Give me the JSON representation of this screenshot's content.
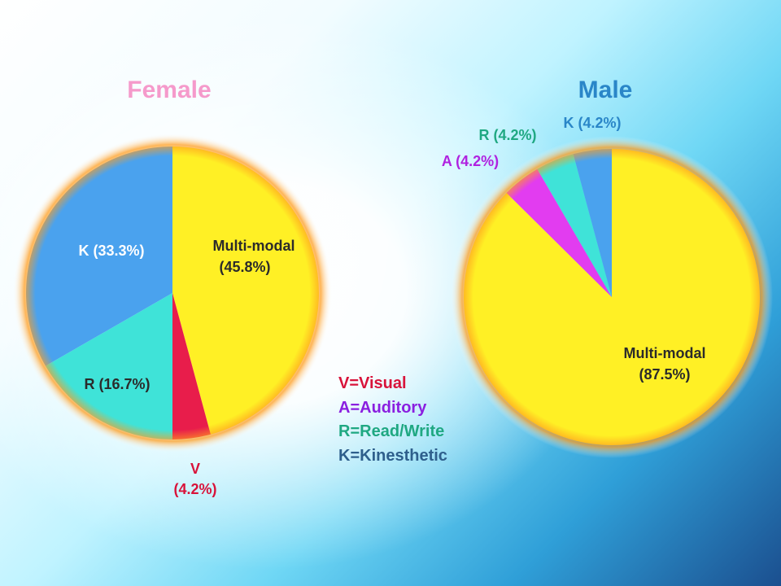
{
  "chart_data": [
    {
      "type": "pie",
      "title": "Female",
      "slices": [
        {
          "label": "Multi-modal",
          "value": 45.8,
          "text": "(45.8%)",
          "color": "#fff025"
        },
        {
          "label": "V",
          "value": 4.2,
          "text": "(4.2%)",
          "color": "#e81d4b"
        },
        {
          "label": "R",
          "value": 16.7,
          "text": "R (16.7%)",
          "color": "#3fe3d8"
        },
        {
          "label": "K",
          "value": 33.3,
          "text": "K (33.3%)",
          "color": "#4aa2ee"
        }
      ]
    },
    {
      "type": "pie",
      "title": "Male",
      "slices": [
        {
          "label": "Multi-modal",
          "value": 87.5,
          "text": "(87.5%)",
          "color": "#fff025"
        },
        {
          "label": "A",
          "value": 4.2,
          "text": "A (4.2%)",
          "color": "#e23cf0"
        },
        {
          "label": "R",
          "value": 4.2,
          "text": "R (4.2%)",
          "color": "#3fe3d8"
        },
        {
          "label": "K",
          "value": 4.2,
          "text": "K (4.2%)",
          "color": "#4aa2ee"
        }
      ]
    }
  ],
  "legend": [
    {
      "text": "V=Visual",
      "color": "#d8133a"
    },
    {
      "text": "A=Auditory",
      "color": "#8a1fe0"
    },
    {
      "text": "R=Read/Write",
      "color": "#1fa882"
    },
    {
      "text": "K=Kinesthetic",
      "color": "#2e5f8c"
    }
  ],
  "colors": {
    "female_title": "#f59acb",
    "male_title": "#2a86c8",
    "female_v_label": "#d8133a",
    "male_a_label": "#b022e0",
    "male_r_label": "#1fa882",
    "male_k_label": "#2a86c8"
  }
}
